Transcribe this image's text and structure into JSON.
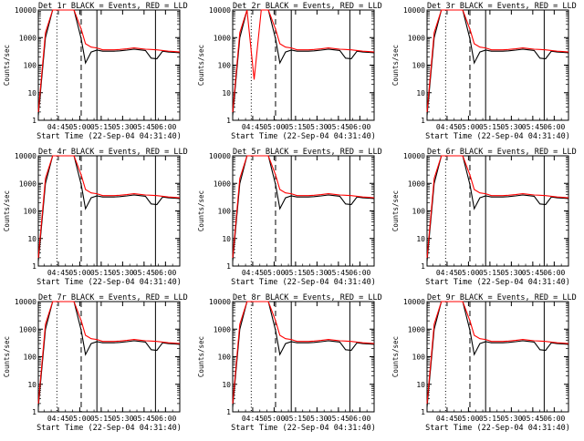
{
  "figure": {
    "xlabel": "Start Time (22-Sep-04 04:31:40)",
    "ylabel": "Counts/sec",
    "x_tick_labels": [
      "04:45",
      "05:00",
      "05:15",
      "05:30",
      "05:45",
      "06:00"
    ],
    "y_tick_labels": [
      "1",
      "10",
      "100",
      "1000",
      "10000"
    ],
    "colors": {
      "events": "#000000",
      "lld": "#ff0000",
      "background": "#ffffff"
    }
  },
  "chart_data": [
    {
      "type": "line",
      "title": "Det 1r BLACK = Events, RED = LLD",
      "xlabel": "Start Time (22-Sep-04 04:31:40)",
      "ylabel": "Counts/sec",
      "xlim": [
        "04:31",
        "06:10"
      ],
      "ylim": [
        1,
        10000
      ],
      "yscale": "log",
      "x": [
        "04:31",
        "04:36",
        "04:41",
        "04:46",
        "04:51",
        "04:56",
        "05:01",
        "05:04",
        "05:08",
        "05:12",
        "05:16",
        "05:20",
        "05:24",
        "05:28",
        "05:33",
        "05:38",
        "05:42",
        "05:46",
        "05:50",
        "05:54",
        "05:58",
        "06:02",
        "06:06",
        "06:10"
      ],
      "series": [
        {
          "name": "Events",
          "values": [
            1.5,
            1000,
            10000,
            10000,
            10000,
            10000,
            900,
            120,
            300,
            350,
            320,
            320,
            320,
            330,
            350,
            380,
            360,
            340,
            180,
            170,
            320,
            300,
            290,
            280
          ]
        },
        {
          "name": "LLD",
          "values": [
            2,
            1500,
            10000,
            10000,
            10000,
            10000,
            2000,
            600,
            450,
            420,
            360,
            360,
            360,
            370,
            390,
            420,
            400,
            380,
            370,
            360,
            340,
            320,
            310,
            300
          ]
        }
      ],
      "reference_lines": [
        {
          "style": "dotted",
          "x": "04:44"
        },
        {
          "style": "dashed",
          "x": "05:01"
        },
        {
          "style": "solid",
          "x": "05:12"
        },
        {
          "style": "solid",
          "x": "05:53"
        }
      ]
    },
    {
      "type": "line",
      "title": "Det 2r BLACK = Events, RED = LLD",
      "xlabel": "Start Time (22-Sep-04 04:31:40)",
      "ylabel": "Counts/sec",
      "xlim": [
        "04:31",
        "06:10"
      ],
      "ylim": [
        1,
        10000
      ],
      "yscale": "log",
      "x": [
        "04:31",
        "04:36",
        "04:41",
        "04:46",
        "04:51",
        "04:56",
        "05:01",
        "05:04",
        "05:08",
        "05:12",
        "05:16",
        "05:20",
        "05:24",
        "05:28",
        "05:33",
        "05:38",
        "05:42",
        "05:46",
        "05:50",
        "05:54",
        "05:58",
        "06:02",
        "06:06",
        "06:10"
      ],
      "series": [
        {
          "name": "Events",
          "values": [
            1.5,
            1000,
            10000,
            10000,
            10000,
            10000,
            900,
            120,
            300,
            350,
            320,
            320,
            320,
            330,
            350,
            380,
            360,
            340,
            180,
            170,
            320,
            300,
            290,
            280
          ]
        },
        {
          "name": "LLD",
          "values": [
            2,
            1500,
            10000,
            30,
            10000,
            10000,
            2000,
            600,
            450,
            420,
            360,
            360,
            360,
            370,
            390,
            420,
            400,
            380,
            370,
            360,
            340,
            320,
            310,
            300
          ]
        }
      ],
      "reference_lines": [
        {
          "style": "dotted",
          "x": "04:44"
        },
        {
          "style": "dashed",
          "x": "05:01"
        },
        {
          "style": "solid",
          "x": "05:12"
        },
        {
          "style": "solid",
          "x": "05:53"
        }
      ]
    },
    {
      "type": "line",
      "title": "Det 3r BLACK = Events, RED = LLD",
      "xlabel": "Start Time (22-Sep-04 04:31:40)",
      "ylabel": "Counts/sec",
      "xlim": [
        "04:31",
        "06:10"
      ],
      "ylim": [
        1,
        10000
      ],
      "yscale": "log",
      "x": [
        "04:31",
        "04:36",
        "04:41",
        "04:46",
        "04:51",
        "04:56",
        "05:01",
        "05:04",
        "05:08",
        "05:12",
        "05:16",
        "05:20",
        "05:24",
        "05:28",
        "05:33",
        "05:38",
        "05:42",
        "05:46",
        "05:50",
        "05:54",
        "05:58",
        "06:02",
        "06:06",
        "06:10"
      ],
      "series": [
        {
          "name": "Events",
          "values": [
            1.5,
            1000,
            10000,
            10000,
            10000,
            10000,
            900,
            120,
            300,
            350,
            320,
            320,
            320,
            330,
            350,
            380,
            360,
            340,
            180,
            170,
            320,
            300,
            290,
            280
          ]
        },
        {
          "name": "LLD",
          "values": [
            2,
            1500,
            10000,
            10000,
            10000,
            10000,
            2000,
            600,
            450,
            420,
            360,
            360,
            360,
            370,
            390,
            420,
            400,
            380,
            370,
            360,
            340,
            320,
            310,
            300
          ]
        }
      ],
      "reference_lines": [
        {
          "style": "dotted",
          "x": "04:44"
        },
        {
          "style": "dashed",
          "x": "05:01"
        },
        {
          "style": "solid",
          "x": "05:12"
        },
        {
          "style": "solid",
          "x": "05:53"
        }
      ]
    },
    {
      "type": "line",
      "title": "Det 4r BLACK = Events, RED = LLD",
      "xlabel": "Start Time (22-Sep-04 04:31:40)",
      "ylabel": "Counts/sec",
      "xlim": [
        "04:31",
        "06:10"
      ],
      "ylim": [
        1,
        10000
      ],
      "yscale": "log",
      "x": [
        "04:31",
        "04:36",
        "04:41",
        "04:46",
        "04:51",
        "04:56",
        "05:01",
        "05:04",
        "05:08",
        "05:12",
        "05:16",
        "05:20",
        "05:24",
        "05:28",
        "05:33",
        "05:38",
        "05:42",
        "05:46",
        "05:50",
        "05:54",
        "05:58",
        "06:02",
        "06:06",
        "06:10"
      ],
      "series": [
        {
          "name": "Events",
          "values": [
            1.5,
            1000,
            10000,
            10000,
            10000,
            10000,
            900,
            120,
            300,
            350,
            320,
            320,
            320,
            330,
            350,
            380,
            360,
            340,
            180,
            170,
            320,
            300,
            290,
            280
          ]
        },
        {
          "name": "LLD",
          "values": [
            2,
            1500,
            10000,
            10000,
            10000,
            10000,
            2000,
            600,
            450,
            420,
            360,
            360,
            360,
            370,
            390,
            420,
            400,
            380,
            370,
            360,
            340,
            320,
            310,
            300
          ]
        }
      ],
      "reference_lines": [
        {
          "style": "dotted",
          "x": "04:44"
        },
        {
          "style": "dashed",
          "x": "05:01"
        },
        {
          "style": "solid",
          "x": "05:12"
        },
        {
          "style": "solid",
          "x": "05:53"
        }
      ]
    },
    {
      "type": "line",
      "title": "Det 5r BLACK = Events, RED = LLD",
      "xlabel": "Start Time (22-Sep-04 04:31:40)",
      "ylabel": "Counts/sec",
      "xlim": [
        "04:31",
        "06:10"
      ],
      "ylim": [
        1,
        10000
      ],
      "yscale": "log",
      "x": [
        "04:31",
        "04:36",
        "04:41",
        "04:46",
        "04:51",
        "04:56",
        "05:01",
        "05:04",
        "05:08",
        "05:12",
        "05:16",
        "05:20",
        "05:24",
        "05:28",
        "05:33",
        "05:38",
        "05:42",
        "05:46",
        "05:50",
        "05:54",
        "05:58",
        "06:02",
        "06:06",
        "06:10"
      ],
      "series": [
        {
          "name": "Events",
          "values": [
            1.5,
            1000,
            10000,
            10000,
            10000,
            10000,
            900,
            120,
            300,
            350,
            320,
            320,
            320,
            330,
            350,
            380,
            360,
            340,
            180,
            170,
            320,
            300,
            290,
            280
          ]
        },
        {
          "name": "LLD",
          "values": [
            2,
            1500,
            10000,
            10000,
            10000,
            10000,
            2000,
            600,
            450,
            420,
            360,
            360,
            360,
            370,
            390,
            420,
            400,
            380,
            370,
            360,
            340,
            320,
            310,
            300
          ]
        }
      ],
      "reference_lines": [
        {
          "style": "dotted",
          "x": "04:44"
        },
        {
          "style": "dashed",
          "x": "05:01"
        },
        {
          "style": "solid",
          "x": "05:12"
        },
        {
          "style": "solid",
          "x": "05:53"
        }
      ]
    },
    {
      "type": "line",
      "title": "Det 6r BLACK = Events, RED = LLD",
      "xlabel": "Start Time (22-Sep-04 04:31:40)",
      "ylabel": "Counts/sec",
      "xlim": [
        "04:31",
        "06:10"
      ],
      "ylim": [
        1,
        10000
      ],
      "yscale": "log",
      "x": [
        "04:31",
        "04:36",
        "04:41",
        "04:46",
        "04:51",
        "04:56",
        "05:01",
        "05:04",
        "05:08",
        "05:12",
        "05:16",
        "05:20",
        "05:24",
        "05:28",
        "05:33",
        "05:38",
        "05:42",
        "05:46",
        "05:50",
        "05:54",
        "05:58",
        "06:02",
        "06:06",
        "06:10"
      ],
      "series": [
        {
          "name": "Events",
          "values": [
            1.5,
            1000,
            10000,
            10000,
            10000,
            10000,
            900,
            120,
            300,
            350,
            320,
            320,
            320,
            330,
            350,
            380,
            360,
            340,
            180,
            170,
            320,
            300,
            290,
            280
          ]
        },
        {
          "name": "LLD",
          "values": [
            2,
            1500,
            10000,
            10000,
            10000,
            10000,
            2000,
            600,
            450,
            420,
            360,
            360,
            360,
            370,
            390,
            420,
            400,
            380,
            370,
            360,
            340,
            320,
            310,
            300
          ]
        }
      ],
      "reference_lines": [
        {
          "style": "dotted",
          "x": "04:44"
        },
        {
          "style": "dashed",
          "x": "05:01"
        },
        {
          "style": "solid",
          "x": "05:12"
        },
        {
          "style": "solid",
          "x": "05:53"
        }
      ]
    },
    {
      "type": "line",
      "title": "Det 7r BLACK = Events, RED = LLD",
      "xlabel": "Start Time (22-Sep-04 04:31:40)",
      "ylabel": "Counts/sec",
      "xlim": [
        "04:31",
        "06:10"
      ],
      "ylim": [
        1,
        10000
      ],
      "yscale": "log",
      "x": [
        "04:31",
        "04:36",
        "04:41",
        "04:46",
        "04:51",
        "04:56",
        "05:01",
        "05:04",
        "05:08",
        "05:12",
        "05:16",
        "05:20",
        "05:24",
        "05:28",
        "05:33",
        "05:38",
        "05:42",
        "05:46",
        "05:50",
        "05:54",
        "05:58",
        "06:02",
        "06:06",
        "06:10"
      ],
      "series": [
        {
          "name": "Events",
          "values": [
            1.5,
            1000,
            10000,
            10000,
            10000,
            10000,
            900,
            120,
            300,
            350,
            320,
            320,
            320,
            330,
            350,
            380,
            360,
            340,
            180,
            170,
            320,
            300,
            290,
            280
          ]
        },
        {
          "name": "LLD",
          "values": [
            2,
            1500,
            10000,
            10000,
            10000,
            10000,
            2000,
            600,
            450,
            420,
            360,
            360,
            360,
            370,
            390,
            420,
            400,
            380,
            370,
            360,
            340,
            320,
            310,
            300
          ]
        }
      ],
      "reference_lines": [
        {
          "style": "dotted",
          "x": "04:44"
        },
        {
          "style": "dashed",
          "x": "05:01"
        },
        {
          "style": "solid",
          "x": "05:12"
        },
        {
          "style": "solid",
          "x": "05:53"
        }
      ]
    },
    {
      "type": "line",
      "title": "Det 8r BLACK = Events, RED = LLD",
      "xlabel": "Start Time (22-Sep-04 04:31:40)",
      "ylabel": "Counts/sec",
      "xlim": [
        "04:31",
        "06:10"
      ],
      "ylim": [
        1,
        10000
      ],
      "yscale": "log",
      "x": [
        "04:31",
        "04:36",
        "04:41",
        "04:46",
        "04:51",
        "04:56",
        "05:01",
        "05:04",
        "05:08",
        "05:12",
        "05:16",
        "05:20",
        "05:24",
        "05:28",
        "05:33",
        "05:38",
        "05:42",
        "05:46",
        "05:50",
        "05:54",
        "05:58",
        "06:02",
        "06:06",
        "06:10"
      ],
      "series": [
        {
          "name": "Events",
          "values": [
            1.5,
            1000,
            10000,
            10000,
            10000,
            10000,
            900,
            120,
            300,
            350,
            320,
            320,
            320,
            330,
            350,
            380,
            360,
            340,
            180,
            170,
            320,
            300,
            290,
            280
          ]
        },
        {
          "name": "LLD",
          "values": [
            2,
            1500,
            10000,
            10000,
            10000,
            10000,
            2000,
            600,
            450,
            420,
            360,
            360,
            360,
            370,
            390,
            420,
            400,
            380,
            370,
            360,
            340,
            320,
            310,
            300
          ]
        }
      ],
      "reference_lines": [
        {
          "style": "dotted",
          "x": "04:44"
        },
        {
          "style": "dashed",
          "x": "05:01"
        },
        {
          "style": "solid",
          "x": "05:12"
        },
        {
          "style": "solid",
          "x": "05:53"
        }
      ]
    },
    {
      "type": "line",
      "title": "Det 9r BLACK = Events, RED = LLD",
      "xlabel": "Start Time (22-Sep-04 04:31:40)",
      "ylabel": "Counts/sec",
      "xlim": [
        "04:31",
        "06:10"
      ],
      "ylim": [
        1,
        10000
      ],
      "yscale": "log",
      "x": [
        "04:31",
        "04:36",
        "04:41",
        "04:46",
        "04:51",
        "04:56",
        "05:01",
        "05:04",
        "05:08",
        "05:12",
        "05:16",
        "05:20",
        "05:24",
        "05:28",
        "05:33",
        "05:38",
        "05:42",
        "05:46",
        "05:50",
        "05:54",
        "05:58",
        "06:02",
        "06:06",
        "06:10"
      ],
      "series": [
        {
          "name": "Events",
          "values": [
            1.5,
            1000,
            10000,
            10000,
            10000,
            10000,
            900,
            120,
            300,
            350,
            320,
            320,
            320,
            330,
            350,
            380,
            360,
            340,
            180,
            170,
            320,
            300,
            290,
            280
          ]
        },
        {
          "name": "LLD",
          "values": [
            2,
            1500,
            10000,
            10000,
            10000,
            10000,
            2000,
            600,
            450,
            420,
            360,
            360,
            360,
            370,
            390,
            420,
            400,
            380,
            370,
            360,
            340,
            320,
            310,
            300
          ]
        }
      ],
      "reference_lines": [
        {
          "style": "dotted",
          "x": "04:44"
        },
        {
          "style": "dashed",
          "x": "05:01"
        },
        {
          "style": "solid",
          "x": "05:12"
        },
        {
          "style": "solid",
          "x": "05:53"
        }
      ]
    }
  ]
}
